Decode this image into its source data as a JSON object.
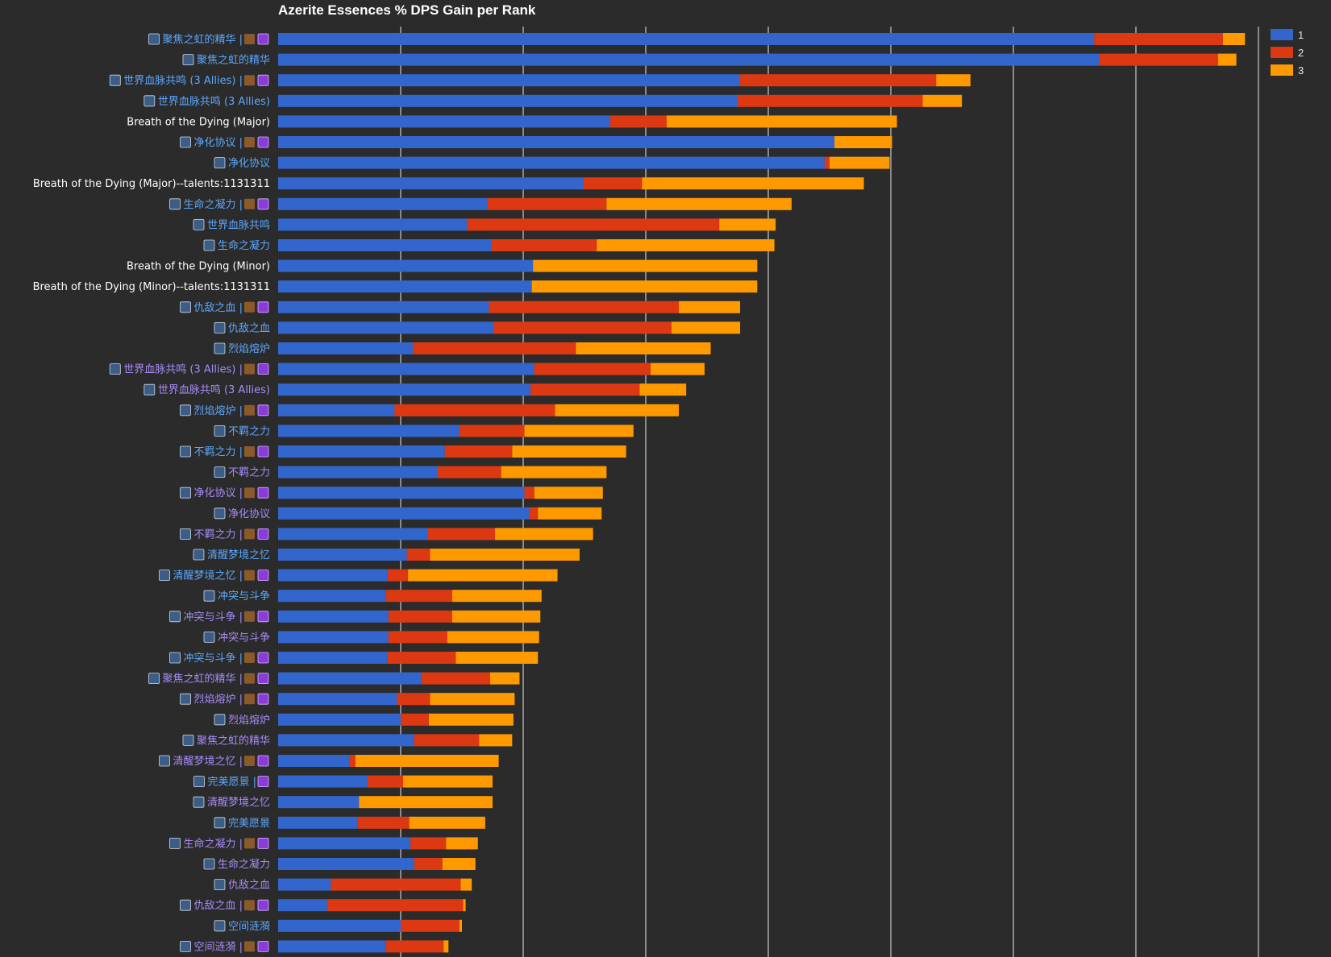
{
  "colors": {
    "background": "#2b2b2b",
    "gridline": "#e8e8e8",
    "title": "#ffffff",
    "label_plain": "#ffffff",
    "label_epic": "#a78bfa",
    "label_rare": "#5ba8ff",
    "icon_bg": "#3b5d86",
    "trait_icon_a": "#8a5a2b",
    "trait_icon_b": "#8b3bd9"
  },
  "chart_data": {
    "type": "bar",
    "orientation": "horizontal",
    "stacked": true,
    "title": "Azerite Essences % DPS Gain per Rank",
    "xlabel": "",
    "ylabel": "",
    "xlim": [
      0,
      8
    ],
    "grid": true,
    "legend_position": "top-right",
    "series_names": [
      "1",
      "2",
      "3"
    ],
    "series_colors": [
      "#3366cc",
      "#dc3912",
      "#ff9900"
    ],
    "categories": [
      {
        "label": "聚焦之虹的精华 |",
        "icons": [
          "gear-icon",
          "trait-icon-a",
          "trait-icon-b"
        ],
        "color": "label_rare"
      },
      {
        "label": "聚焦之虹的精华",
        "icons": [
          "gear-icon"
        ],
        "color": "label_rare"
      },
      {
        "label": "世界血脉共鸣 (3 Allies) |",
        "icons": [
          "gear-icon",
          "trait-icon-a",
          "trait-icon-b"
        ],
        "color": "label_rare"
      },
      {
        "label": "世界血脉共鸣 (3 Allies)",
        "icons": [
          "gear-icon"
        ],
        "color": "label_rare"
      },
      {
        "label": "Breath of the Dying (Major)",
        "icons": [],
        "color": "label_plain"
      },
      {
        "label": "净化协议 |",
        "icons": [
          "gear-icon",
          "trait-icon-a",
          "trait-icon-b"
        ],
        "color": "label_rare"
      },
      {
        "label": "净化协议",
        "icons": [
          "gear-icon"
        ],
        "color": "label_rare"
      },
      {
        "label": "Breath of the Dying (Major)--talents:1131311",
        "icons": [],
        "color": "label_plain"
      },
      {
        "label": "生命之凝力 |",
        "icons": [
          "gear-icon",
          "trait-icon-a",
          "trait-icon-b"
        ],
        "color": "label_rare"
      },
      {
        "label": "世界血脉共鸣",
        "icons": [
          "gear-icon"
        ],
        "color": "label_rare"
      },
      {
        "label": "生命之凝力",
        "icons": [
          "gear-icon"
        ],
        "color": "label_rare"
      },
      {
        "label": "Breath of the Dying (Minor)",
        "icons": [],
        "color": "label_plain"
      },
      {
        "label": "Breath of the Dying (Minor)--talents:1131311",
        "icons": [],
        "color": "label_plain"
      },
      {
        "label": "仇敌之血 |",
        "icons": [
          "gear-icon",
          "trait-icon-a",
          "trait-icon-b"
        ],
        "color": "label_rare"
      },
      {
        "label": "仇敌之血",
        "icons": [
          "gear-icon"
        ],
        "color": "label_rare"
      },
      {
        "label": "烈焰熔炉",
        "icons": [
          "gear-icon"
        ],
        "color": "label_rare"
      },
      {
        "label": "世界血脉共鸣 (3 Allies) |",
        "icons": [
          "gear-icon",
          "trait-icon-a",
          "trait-icon-b"
        ],
        "color": "label_epic"
      },
      {
        "label": "世界血脉共鸣 (3 Allies)",
        "icons": [
          "gear-icon"
        ],
        "color": "label_epic"
      },
      {
        "label": "烈焰熔炉 |",
        "icons": [
          "gear-icon",
          "trait-icon-a",
          "trait-icon-b"
        ],
        "color": "label_rare"
      },
      {
        "label": "不羁之力",
        "icons": [
          "gear-icon"
        ],
        "color": "label_rare"
      },
      {
        "label": "不羁之力 |",
        "icons": [
          "gear-icon",
          "trait-icon-a",
          "trait-icon-b"
        ],
        "color": "label_rare"
      },
      {
        "label": "不羁之力",
        "icons": [
          "gear-icon"
        ],
        "color": "label_epic"
      },
      {
        "label": "净化协议 |",
        "icons": [
          "gear-icon",
          "trait-icon-a",
          "trait-icon-b"
        ],
        "color": "label_epic"
      },
      {
        "label": "净化协议",
        "icons": [
          "gear-icon"
        ],
        "color": "label_epic"
      },
      {
        "label": "不羁之力 |",
        "icons": [
          "gear-icon",
          "trait-icon-a",
          "trait-icon-b"
        ],
        "color": "label_epic"
      },
      {
        "label": "清醒梦境之忆",
        "icons": [
          "gear-icon"
        ],
        "color": "label_rare"
      },
      {
        "label": "清醒梦境之忆 |",
        "icons": [
          "gear-icon",
          "trait-icon-a",
          "trait-icon-b"
        ],
        "color": "label_rare"
      },
      {
        "label": "冲突与斗争",
        "icons": [
          "gear-icon"
        ],
        "color": "label_rare"
      },
      {
        "label": "冲突与斗争 |",
        "icons": [
          "gear-icon",
          "trait-icon-a",
          "trait-icon-b"
        ],
        "color": "label_epic"
      },
      {
        "label": "冲突与斗争",
        "icons": [
          "gear-icon"
        ],
        "color": "label_epic"
      },
      {
        "label": "冲突与斗争 |",
        "icons": [
          "gear-icon",
          "trait-icon-a",
          "trait-icon-b"
        ],
        "color": "label_rare"
      },
      {
        "label": "聚焦之虹的精华 |",
        "icons": [
          "gear-icon",
          "trait-icon-a",
          "trait-icon-b"
        ],
        "color": "label_epic"
      },
      {
        "label": "烈焰熔炉 |",
        "icons": [
          "gear-icon",
          "trait-icon-a",
          "trait-icon-b"
        ],
        "color": "label_epic"
      },
      {
        "label": "烈焰熔炉",
        "icons": [
          "gear-icon"
        ],
        "color": "label_epic"
      },
      {
        "label": "聚焦之虹的精华",
        "icons": [
          "gear-icon"
        ],
        "color": "label_epic"
      },
      {
        "label": "清醒梦境之忆 |",
        "icons": [
          "gear-icon",
          "trait-icon-a",
          "trait-icon-b"
        ],
        "color": "label_epic"
      },
      {
        "label": "完美愿景 |",
        "icons": [
          "gear-icon",
          "trait-icon-b"
        ],
        "color": "label_rare"
      },
      {
        "label": "清醒梦境之忆",
        "icons": [
          "gear-icon"
        ],
        "color": "label_epic"
      },
      {
        "label": "完美愿景",
        "icons": [
          "gear-icon"
        ],
        "color": "label_rare"
      },
      {
        "label": "生命之凝力 |",
        "icons": [
          "gear-icon",
          "trait-icon-a",
          "trait-icon-b"
        ],
        "color": "label_epic"
      },
      {
        "label": "生命之凝力",
        "icons": [
          "gear-icon"
        ],
        "color": "label_epic"
      },
      {
        "label": "仇敌之血",
        "icons": [
          "gear-icon"
        ],
        "color": "label_epic"
      },
      {
        "label": "仇敌之血 |",
        "icons": [
          "gear-icon",
          "trait-icon-a",
          "trait-icon-b"
        ],
        "color": "label_epic"
      },
      {
        "label": "空间涟漪",
        "icons": [
          "gear-icon"
        ],
        "color": "label_rare"
      },
      {
        "label": "空间涟漪 |",
        "icons": [
          "gear-icon",
          "trait-icon-a",
          "trait-icon-b"
        ],
        "color": "label_epic"
      }
    ],
    "series": [
      {
        "name": "1",
        "values": [
          6.66,
          6.7,
          3.77,
          3.75,
          2.71,
          4.54,
          4.46,
          2.49,
          1.71,
          1.54,
          1.74,
          2.08,
          2.07,
          1.72,
          1.76,
          1.1,
          2.09,
          2.06,
          0.95,
          1.48,
          1.36,
          1.3,
          2.01,
          2.05,
          1.22,
          1.05,
          0.89,
          0.88,
          0.9,
          0.9,
          0.89,
          1.17,
          0.97,
          1.0,
          1.11,
          0.58,
          0.73,
          0.66,
          0.65,
          1.08,
          1.11,
          0.43,
          0.4,
          1.0,
          0.88
        ]
      },
      {
        "name": "2",
        "values": [
          1.05,
          0.97,
          1.6,
          1.51,
          0.46,
          0.0,
          0.04,
          0.48,
          0.97,
          2.06,
          0.86,
          0.0,
          0.0,
          1.55,
          1.45,
          1.33,
          0.95,
          0.89,
          1.31,
          0.53,
          0.55,
          0.52,
          0.08,
          0.07,
          0.55,
          0.19,
          0.17,
          0.54,
          0.52,
          0.48,
          0.56,
          0.56,
          0.27,
          0.23,
          0.53,
          0.05,
          0.29,
          0.0,
          0.42,
          0.29,
          0.23,
          1.06,
          1.11,
          0.48,
          0.47
        ]
      },
      {
        "name": "3",
        "values": [
          0.18,
          0.15,
          0.28,
          0.32,
          1.88,
          0.47,
          0.49,
          1.81,
          1.51,
          0.46,
          1.45,
          1.83,
          1.84,
          0.5,
          0.56,
          1.1,
          0.44,
          0.38,
          1.01,
          0.89,
          0.93,
          0.86,
          0.56,
          0.52,
          0.8,
          1.22,
          1.22,
          0.73,
          0.72,
          0.75,
          0.67,
          0.24,
          0.69,
          0.69,
          0.27,
          1.17,
          0.73,
          1.09,
          0.62,
          0.26,
          0.27,
          0.09,
          0.02,
          0.02,
          0.04
        ]
      }
    ]
  }
}
